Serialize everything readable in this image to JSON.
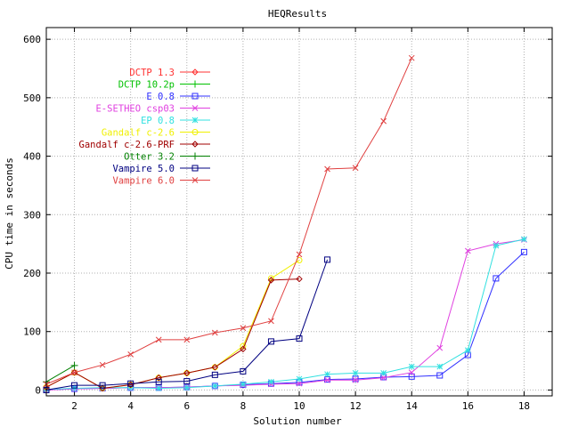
{
  "chart_data": {
    "type": "line",
    "title": "HEQResults",
    "xlabel": "Solution number",
    "ylabel": "CPU time in seconds",
    "xlim": [
      1,
      19
    ],
    "ylim": [
      -10,
      620
    ],
    "xticks": [
      2,
      4,
      6,
      8,
      10,
      12,
      14,
      16,
      18
    ],
    "yticks": [
      0,
      100,
      200,
      300,
      400,
      500,
      600
    ],
    "grid": true,
    "legend_position": "top-left",
    "series": [
      {
        "name": "DCTP 1.3",
        "color": "#ff3030",
        "marker": "diamond",
        "x": [],
        "y": []
      },
      {
        "name": "DCTP 10.2p",
        "color": "#00c000",
        "marker": "plus",
        "x": [],
        "y": []
      },
      {
        "name": "E 0.8",
        "color": "#3030ff",
        "marker": "square",
        "x": [
          1,
          2,
          3,
          4,
          5,
          6,
          7,
          8,
          9,
          10,
          11,
          12,
          13,
          14,
          15,
          16,
          17,
          18
        ],
        "y": [
          0,
          2,
          3,
          4,
          4,
          5,
          7,
          9,
          11,
          13,
          18,
          19,
          22,
          23,
          25,
          60,
          191,
          236
        ]
      },
      {
        "name": "E-SETHEO csp03",
        "color": "#e040e0",
        "marker": "x",
        "x": [
          1,
          2,
          3,
          4,
          5,
          6,
          7,
          8,
          9,
          10,
          11,
          12,
          13,
          14,
          15,
          16,
          17,
          18
        ],
        "y": [
          0,
          2,
          3,
          4,
          4,
          5,
          7,
          8,
          10,
          11,
          17,
          17,
          21,
          30,
          72,
          238,
          250,
          257
        ]
      },
      {
        "name": "EP 0.8",
        "color": "#30e0e0",
        "marker": "star",
        "x": [
          1,
          2,
          3,
          4,
          5,
          6,
          7,
          8,
          9,
          10,
          11,
          12,
          13,
          14,
          15,
          16,
          17,
          18
        ],
        "y": [
          1,
          3,
          4,
          4,
          3,
          4,
          7,
          10,
          14,
          19,
          27,
          29,
          29,
          40,
          40,
          68,
          247,
          258
        ]
      },
      {
        "name": "Gandalf c-2.6",
        "color": "#f0f000",
        "marker": "circle",
        "x": [
          1,
          2,
          3,
          4,
          5,
          6,
          7,
          8,
          9,
          10
        ],
        "y": [
          5,
          30,
          3,
          9,
          21,
          29,
          39,
          75,
          191,
          222
        ]
      },
      {
        "name": "Gandalf c-2.6-PRF",
        "color": "#a00000",
        "marker": "diamond",
        "x": [
          1,
          2,
          3,
          4,
          5,
          6,
          7,
          8,
          9,
          10
        ],
        "y": [
          5,
          30,
          3,
          9,
          21,
          29,
          39,
          70,
          188,
          190
        ]
      },
      {
        "name": "Otter 3.2",
        "color": "#008000",
        "marker": "plus",
        "x": [
          1,
          2
        ],
        "y": [
          14,
          42
        ]
      },
      {
        "name": "Vampire 5.0",
        "color": "#000080",
        "marker": "square",
        "x": [
          1,
          2,
          3,
          4,
          5,
          6,
          7,
          8,
          9,
          10,
          11
        ],
        "y": [
          0,
          8,
          8,
          11,
          14,
          15,
          26,
          32,
          83,
          88,
          223
        ]
      },
      {
        "name": "Vampire 6.0",
        "color": "#e04040",
        "marker": "x",
        "x": [
          1,
          2,
          3,
          4,
          5,
          6,
          7,
          8,
          9,
          10,
          11,
          12,
          13,
          14
        ],
        "y": [
          10,
          30,
          43,
          61,
          86,
          86,
          98,
          106,
          118,
          232,
          378,
          380,
          460,
          568
        ]
      }
    ]
  }
}
